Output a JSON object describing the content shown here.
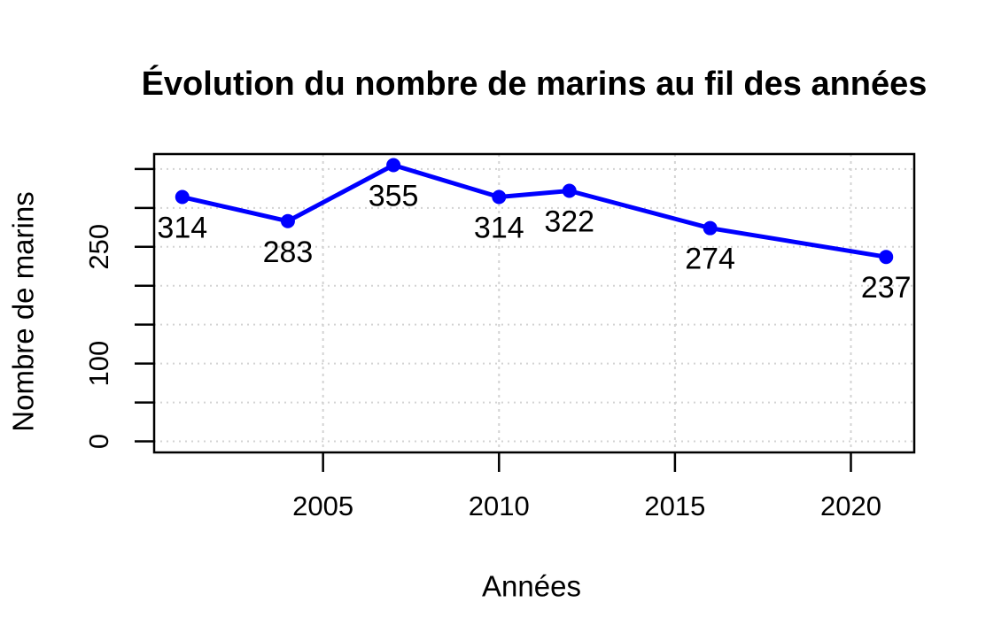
{
  "chart_data": {
    "type": "line",
    "title": "Évolution du nombre de marins au fil des années",
    "xlabel": "Années",
    "ylabel": "Nombre de marins",
    "x": [
      2001,
      2004,
      2007,
      2010,
      2012,
      2016,
      2021
    ],
    "values": [
      314,
      283,
      355,
      314,
      322,
      274,
      237
    ],
    "point_labels": [
      "314",
      "283",
      "355",
      "314",
      "322",
      "274",
      "237"
    ],
    "series_name": "Nombre de marins",
    "x_ticks": [
      {
        "value": 2005,
        "label": "2005"
      },
      {
        "value": 2010,
        "label": "2010"
      },
      {
        "value": 2015,
        "label": "2015"
      },
      {
        "value": 2020,
        "label": "2020"
      }
    ],
    "y_ticks": [
      {
        "value": 0,
        "label": "0"
      },
      {
        "value": 50,
        "label": ""
      },
      {
        "value": 100,
        "label": "100"
      },
      {
        "value": 150,
        "label": ""
      },
      {
        "value": 200,
        "label": ""
      },
      {
        "value": 250,
        "label": "250"
      },
      {
        "value": 300,
        "label": ""
      },
      {
        "value": 350,
        "label": ""
      }
    ],
    "xlim": [
      2000.2,
      2021.8
    ],
    "ylim": [
      -14.2,
      369.2
    ],
    "grid": true,
    "grid_style": "dotted",
    "legend": null,
    "colors": {
      "line": "#0000ff",
      "points": "#0000ff",
      "grid": "#d3d3d3",
      "axis": "#000000",
      "text": "#000000",
      "background": "#ffffff"
    }
  }
}
